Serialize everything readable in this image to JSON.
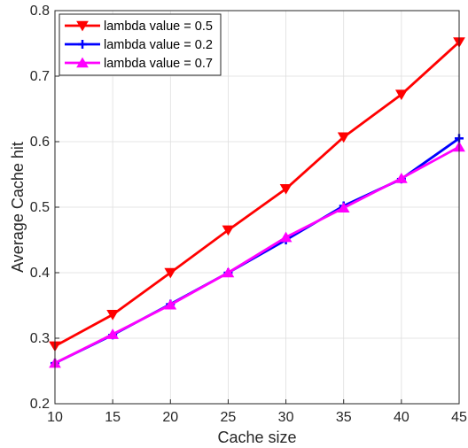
{
  "chart_data": {
    "type": "line",
    "xlabel": "Cache size",
    "ylabel": "Average Cache hit",
    "x": [
      10,
      15,
      20,
      25,
      30,
      35,
      40,
      45
    ],
    "xlim": [
      10,
      45
    ],
    "ylim": [
      0.2,
      0.8
    ],
    "xticks": [
      10,
      15,
      20,
      25,
      30,
      35,
      40,
      45
    ],
    "yticks": [
      0.2,
      0.3,
      0.4,
      0.5,
      0.6,
      0.7,
      0.8
    ],
    "grid": true,
    "legend_position": "top-left",
    "series": [
      {
        "name": "lambda value = 0.5",
        "color": "#ff0000",
        "marker": "triangle-down",
        "values": [
          0.288,
          0.336,
          0.4,
          0.465,
          0.528,
          0.607,
          0.672,
          0.752
        ]
      },
      {
        "name": "lambda value = 0.2",
        "color": "#0000ff",
        "marker": "plus",
        "values": [
          0.262,
          0.305,
          0.352,
          0.4,
          0.45,
          0.502,
          0.543,
          0.605
        ]
      },
      {
        "name": "lambda value = 0.7",
        "color": "#ff00ff",
        "marker": "triangle-up",
        "values": [
          0.262,
          0.306,
          0.351,
          0.4,
          0.454,
          0.499,
          0.544,
          0.592
        ]
      }
    ]
  }
}
